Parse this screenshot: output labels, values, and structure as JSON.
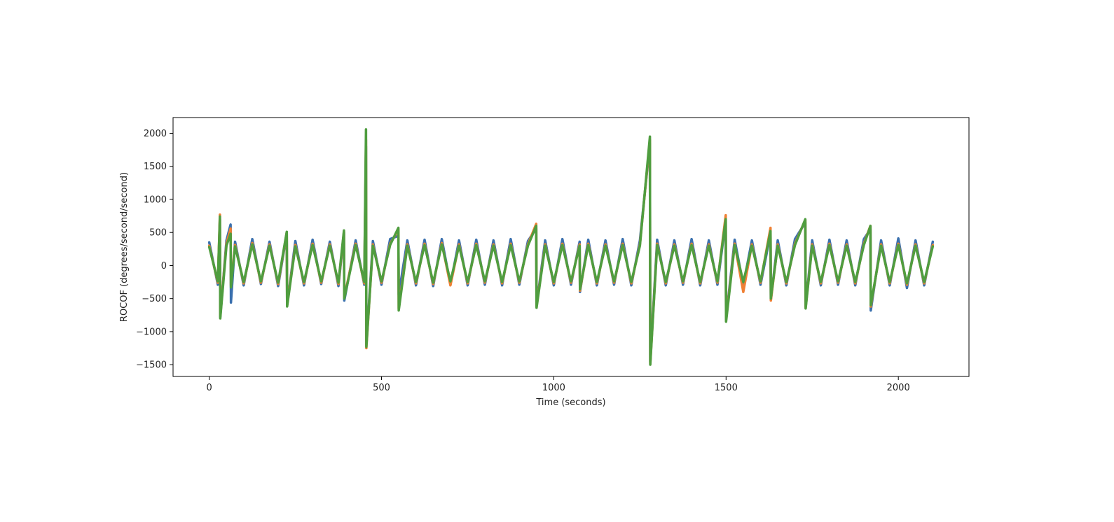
{
  "chart_data": {
    "type": "line",
    "x_label": "Time (seconds)",
    "y_label": "ROCOF (degrees/second/second)",
    "xlim": [
      -105,
      2205
    ],
    "ylim": [
      -1678,
      2238
    ],
    "xticks": [
      0,
      500,
      1000,
      1500,
      2000
    ],
    "yticks": [
      {
        "value": -1500,
        "label": "−1500"
      },
      {
        "value": -1000,
        "label": "−1000"
      },
      {
        "value": -500,
        "label": "−500"
      },
      0,
      500,
      1000,
      1500,
      2000
    ],
    "grid": false,
    "x": [
      0,
      25,
      31,
      32,
      50,
      62,
      63,
      75,
      100,
      125,
      150,
      175,
      200,
      225,
      226,
      250,
      275,
      300,
      325,
      350,
      375,
      391,
      392,
      425,
      450,
      455,
      456,
      475,
      500,
      525,
      549,
      550,
      575,
      600,
      625,
      650,
      675,
      700,
      725,
      750,
      775,
      800,
      825,
      850,
      875,
      900,
      925,
      949,
      950,
      975,
      1000,
      1025,
      1050,
      1075,
      1076,
      1100,
      1125,
      1150,
      1175,
      1200,
      1225,
      1250,
      1279,
      1280,
      1300,
      1325,
      1350,
      1375,
      1400,
      1425,
      1450,
      1475,
      1499,
      1500,
      1525,
      1550,
      1575,
      1600,
      1629,
      1630,
      1650,
      1675,
      1700,
      1730,
      1731,
      1750,
      1775,
      1800,
      1825,
      1850,
      1875,
      1900,
      1919,
      1920,
      1950,
      1975,
      2000,
      2025,
      2050,
      2075,
      2100
    ],
    "series": [
      {
        "color": "#3a70ae",
        "values": [
          350,
          -290,
          700,
          -780,
          380,
          620,
          -560,
          360,
          -300,
          400,
          -280,
          360,
          -310,
          480,
          -600,
          370,
          -300,
          390,
          -280,
          360,
          -310,
          500,
          -530,
          380,
          -290,
          1800,
          -1200,
          370,
          -290,
          400,
          450,
          -440,
          380,
          -300,
          390,
          -310,
          400,
          -290,
          380,
          -300,
          390,
          -290,
          380,
          -300,
          400,
          -290,
          370,
          560,
          -600,
          380,
          -300,
          400,
          -290,
          360,
          -400,
          390,
          -300,
          380,
          -290,
          400,
          -300,
          380,
          1850,
          -1450,
          390,
          -300,
          380,
          -290,
          400,
          -300,
          380,
          -290,
          680,
          -800,
          390,
          -300,
          380,
          -290,
          480,
          -520,
          380,
          -300,
          400,
          650,
          -620,
          380,
          -300,
          390,
          -290,
          380,
          -300,
          400,
          550,
          -680,
          380,
          -300,
          410,
          -340,
          380,
          -300,
          360
        ]
      },
      {
        "color": "#f08034",
        "values": [
          300,
          -260,
          770,
          -760,
          330,
          560,
          -300,
          310,
          -270,
          340,
          -260,
          320,
          -280,
          500,
          -600,
          310,
          -270,
          330,
          -260,
          320,
          -280,
          510,
          -480,
          330,
          -270,
          1900,
          -1250,
          320,
          -260,
          330,
          540,
          -650,
          320,
          -270,
          330,
          -280,
          340,
          -300,
          320,
          -270,
          330,
          -260,
          320,
          -270,
          330,
          -260,
          320,
          630,
          -620,
          320,
          -270,
          330,
          -260,
          320,
          -380,
          330,
          -270,
          320,
          -260,
          330,
          -270,
          320,
          1900,
          -1480,
          330,
          -270,
          320,
          -260,
          330,
          -270,
          320,
          -260,
          760,
          -820,
          330,
          -400,
          320,
          -260,
          570,
          -530,
          320,
          -270,
          330,
          690,
          -640,
          320,
          -270,
          330,
          -260,
          320,
          -270,
          330,
          600,
          -620,
          320,
          -270,
          330,
          -290,
          320,
          -270,
          310
        ]
      },
      {
        "color": "#4f9d3f",
        "values": [
          280,
          -240,
          740,
          -800,
          300,
          480,
          -330,
          290,
          -250,
          320,
          -240,
          300,
          -260,
          510,
          -620,
          290,
          -250,
          310,
          -240,
          300,
          -260,
          530,
          -500,
          310,
          -250,
          2060,
          -1230,
          300,
          -240,
          310,
          570,
          -680,
          300,
          -250,
          310,
          -260,
          320,
          -240,
          300,
          -250,
          310,
          -240,
          300,
          -250,
          310,
          -240,
          300,
          600,
          -640,
          300,
          -250,
          310,
          -240,
          300,
          -360,
          310,
          -250,
          300,
          -240,
          310,
          -250,
          300,
          1950,
          -1500,
          310,
          -250,
          300,
          -240,
          310,
          -250,
          300,
          -240,
          700,
          -850,
          310,
          -250,
          300,
          -240,
          520,
          -500,
          300,
          -250,
          310,
          700,
          -650,
          300,
          -250,
          310,
          -240,
          300,
          -250,
          310,
          600,
          -600,
          300,
          -250,
          310,
          -270,
          300,
          -250,
          290
        ]
      }
    ]
  }
}
